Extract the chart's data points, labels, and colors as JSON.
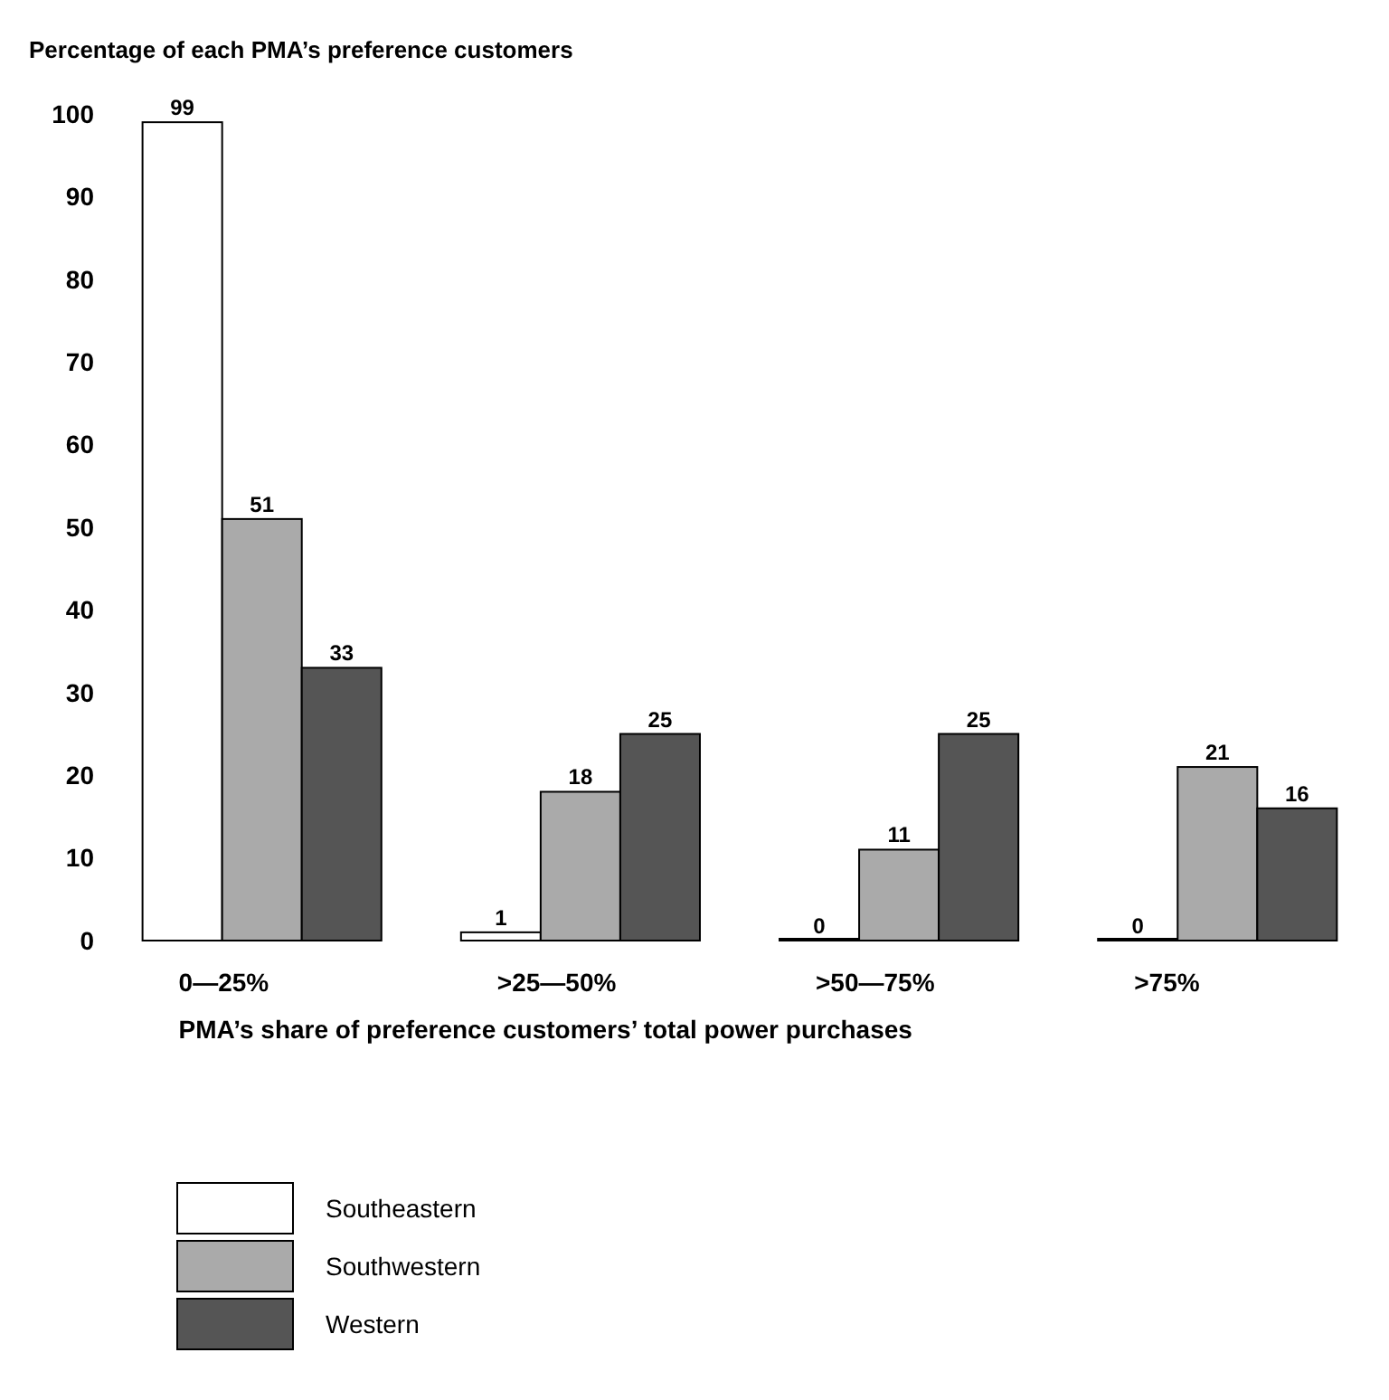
{
  "chart_data": {
    "type": "bar",
    "title": "Percentage of each PMA’s preference customers",
    "xlabel": "PMA’s share of preference customers’ total power purchases",
    "categories": [
      "0—25%",
      ">25—50%",
      ">50—75%",
      ">75%"
    ],
    "series": [
      {
        "name": "Southeastern",
        "color": "#ffffff",
        "values": [
          99,
          1,
          0,
          0
        ]
      },
      {
        "name": "Southwestern",
        "color": "#aaaaaa",
        "values": [
          51,
          18,
          11,
          21
        ]
      },
      {
        "name": "Western",
        "color": "#555555",
        "values": [
          33,
          25,
          25,
          16
        ]
      }
    ],
    "ylim": [
      0,
      100
    ],
    "yticks": [
      0,
      10,
      20,
      30,
      40,
      50,
      60,
      70,
      80,
      90,
      100
    ],
    "data_labels": true,
    "legend": "bottom",
    "grid": false
  }
}
